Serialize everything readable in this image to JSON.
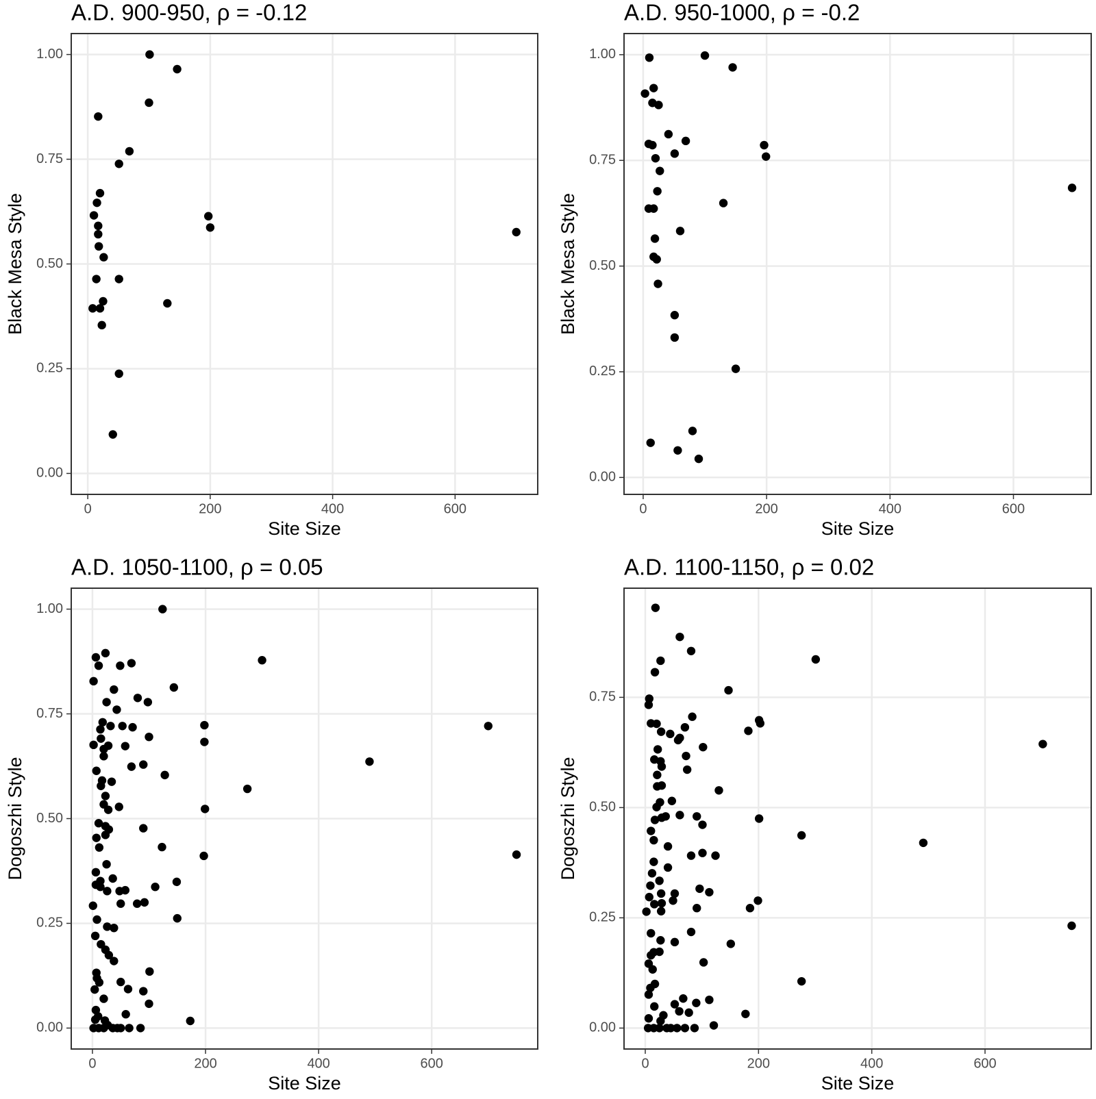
{
  "chart_data": [
    {
      "type": "scatter",
      "title": "A.D. 900-950, ρ = -0.12",
      "x_label": "Site Size",
      "y_label": "Black Mesa Style",
      "color": "#000000",
      "grid": true,
      "xlim": [
        -27,
        735
      ],
      "ylim": [
        -0.05,
        1.05
      ],
      "xticks": [
        0,
        200,
        400,
        600
      ],
      "yticks": [
        {
          "value": 0,
          "label": "0.00"
        },
        0.25,
        {
          "value": 0.5,
          "label": "0.50"
        },
        0.75,
        {
          "value": 1,
          "label": "1.00"
        }
      ],
      "x": [
        101,
        146,
        100,
        17,
        68,
        51,
        20,
        15,
        10,
        197,
        200,
        700,
        17,
        17,
        18,
        26,
        14,
        51,
        130,
        25,
        8,
        20,
        23,
        51,
        41
      ],
      "values": [
        1.0,
        0.965,
        0.885,
        0.852,
        0.769,
        0.739,
        0.669,
        0.646,
        0.616,
        0.614,
        0.587,
        0.576,
        0.591,
        0.571,
        0.542,
        0.516,
        0.464,
        0.464,
        0.406,
        0.411,
        0.394,
        0.394,
        0.354,
        0.238,
        0.093
      ]
    },
    {
      "type": "scatter",
      "title": "A.D. 950-1000, ρ = -0.2",
      "x_label": "Site Size",
      "y_label": "Black Mesa Style",
      "color": "#000000",
      "grid": true,
      "xlim": [
        -31,
        726
      ],
      "ylim": [
        -0.04,
        1.05
      ],
      "xticks": [
        0,
        200,
        400,
        600
      ],
      "yticks": [
        {
          "value": 0,
          "label": "0.00"
        },
        0.25,
        {
          "value": 0.5,
          "label": "0.50"
        },
        0.75,
        {
          "value": 1,
          "label": "1.00"
        }
      ],
      "x": [
        100,
        10,
        145,
        3,
        17,
        15,
        25,
        41,
        69,
        9,
        15,
        196,
        51,
        20,
        199,
        27,
        695,
        23,
        130,
        9,
        17,
        60,
        19,
        17,
        22,
        24,
        51,
        51,
        150,
        80,
        12,
        56,
        90
      ],
      "values": [
        0.998,
        0.993,
        0.97,
        0.908,
        0.921,
        0.886,
        0.881,
        0.812,
        0.796,
        0.789,
        0.786,
        0.786,
        0.766,
        0.755,
        0.759,
        0.725,
        0.685,
        0.677,
        0.649,
        0.636,
        0.636,
        0.583,
        0.565,
        0.522,
        0.516,
        0.458,
        0.384,
        0.331,
        0.257,
        0.11,
        0.082,
        0.064,
        0.044
      ]
    },
    {
      "type": "scatter",
      "title": "A.D. 1050-1100, ρ = 0.05",
      "x_label": "Site Size",
      "y_label": "Dogoszhi Style",
      "color": "#000000",
      "grid": true,
      "xlim": [
        -37.5,
        787.5
      ],
      "ylim": [
        -0.05,
        1.05
      ],
      "xticks": [
        0,
        200,
        400,
        600
      ],
      "yticks": [
        {
          "value": 0,
          "label": "0.00"
        },
        0.25,
        {
          "value": 0.5,
          "label": "0.50"
        },
        0.75,
        {
          "value": 1,
          "label": "1.00"
        }
      ],
      "x": [
        124,
        23,
        6,
        300,
        69,
        49,
        11,
        2,
        144,
        38,
        80,
        98,
        25,
        43,
        18,
        700,
        198,
        53,
        71,
        32,
        14,
        100,
        15,
        198,
        2,
        28,
        58,
        20,
        69,
        90,
        7,
        128,
        20,
        17,
        34,
        15,
        490,
        274,
        23,
        20,
        47,
        199,
        28,
        11,
        23,
        90,
        29,
        23,
        7,
        750,
        197,
        123,
        12,
        25,
        6,
        36,
        14,
        149,
        6,
        111,
        58,
        14,
        26,
        48,
        50,
        92,
        79,
        1,
        150,
        8,
        26,
        38,
        5,
        15,
        23,
        29,
        38,
        7,
        101,
        8,
        12,
        50,
        63,
        90,
        4,
        100,
        20,
        6,
        59,
        173,
        5,
        22,
        2,
        11,
        20,
        27,
        36,
        44,
        50,
        65,
        85,
        10
      ],
      "values": [
        1.0,
        0.895,
        0.885,
        0.878,
        0.871,
        0.865,
        0.865,
        0.828,
        0.813,
        0.808,
        0.788,
        0.778,
        0.778,
        0.76,
        0.73,
        0.721,
        0.723,
        0.721,
        0.718,
        0.721,
        0.713,
        0.695,
        0.691,
        0.683,
        0.676,
        0.674,
        0.673,
        0.666,
        0.624,
        0.629,
        0.614,
        0.604,
        0.649,
        0.591,
        0.588,
        0.578,
        0.636,
        0.571,
        0.554,
        0.534,
        0.528,
        0.523,
        0.521,
        0.489,
        0.482,
        0.477,
        0.474,
        0.461,
        0.454,
        0.414,
        0.411,
        0.432,
        0.431,
        0.391,
        0.372,
        0.357,
        0.351,
        0.349,
        0.342,
        0.337,
        0.329,
        0.337,
        0.327,
        0.327,
        0.297,
        0.3,
        0.297,
        0.292,
        0.262,
        0.259,
        0.242,
        0.239,
        0.22,
        0.2,
        0.187,
        0.174,
        0.16,
        0.132,
        0.135,
        0.119,
        0.109,
        0.11,
        0.093,
        0.088,
        0.092,
        0.058,
        0.07,
        0.043,
        0.033,
        0.017,
        0.02,
        0.018,
        0,
        0,
        0,
        0.007,
        0,
        0,
        0,
        0,
        0,
        0.028
      ]
    },
    {
      "type": "scatter",
      "title": "A.D. 1100-1150, ρ = 0.02",
      "x_label": "Site Size",
      "y_label": "Dogoszhi Style",
      "color": "#000000",
      "grid": true,
      "xlim": [
        -37.5,
        787.5
      ],
      "ylim": [
        -0.0475,
        0.9975
      ],
      "xticks": [
        0,
        200,
        400,
        600
      ],
      "yticks": [
        {
          "value": 0,
          "label": "0.00"
        },
        0.25,
        {
          "value": 0.5,
          "label": "0.50"
        },
        0.75
      ],
      "x": [
        18,
        61,
        81,
        301,
        27,
        17,
        147,
        7,
        6,
        702,
        201,
        203,
        83,
        10,
        20,
        182,
        28,
        44,
        70,
        61,
        58,
        72,
        102,
        22,
        16,
        27,
        29,
        74,
        21,
        29,
        21,
        130,
        47,
        26,
        20,
        61,
        36,
        91,
        201,
        17,
        29,
        101,
        276,
        10,
        15,
        491,
        40,
        101,
        81,
        124,
        15,
        40,
        12,
        25,
        9,
        96,
        113,
        28,
        52,
        7,
        49,
        199,
        29,
        16,
        91,
        185,
        28,
        2,
        81,
        753,
        10,
        27,
        52,
        151,
        25,
        15,
        10,
        6,
        13,
        103,
        17,
        276,
        9,
        6,
        113,
        67,
        90,
        52,
        16,
        60,
        177,
        77,
        6,
        32,
        27,
        121,
        5,
        15,
        25,
        45,
        56,
        70,
        87,
        38
      ],
      "values": [
        0.953,
        0.887,
        0.855,
        0.836,
        0.833,
        0.807,
        0.766,
        0.747,
        0.733,
        0.644,
        0.698,
        0.691,
        0.706,
        0.691,
        0.69,
        0.674,
        0.672,
        0.667,
        0.682,
        0.658,
        0.653,
        0.617,
        0.637,
        0.632,
        0.609,
        0.605,
        0.593,
        0.586,
        0.574,
        0.55,
        0.548,
        0.539,
        0.515,
        0.512,
        0.501,
        0.483,
        0.48,
        0.48,
        0.475,
        0.472,
        0.477,
        0.461,
        0.437,
        0.447,
        0.426,
        0.42,
        0.412,
        0.397,
        0.391,
        0.391,
        0.377,
        0.364,
        0.351,
        0.334,
        0.323,
        0.316,
        0.308,
        0.305,
        0.305,
        0.297,
        0.289,
        0.289,
        0.283,
        0.281,
        0.272,
        0.272,
        0.265,
        0.264,
        0.218,
        0.232,
        0.215,
        0.199,
        0.195,
        0.191,
        0.173,
        0.172,
        0.165,
        0.146,
        0.133,
        0.149,
        0.1,
        0.106,
        0.091,
        0.076,
        0.064,
        0.067,
        0.057,
        0.054,
        0.049,
        0.038,
        0.032,
        0.035,
        0.022,
        0.029,
        0.016,
        0.006,
        0,
        0,
        0,
        0,
        0,
        0,
        0,
        0
      ]
    }
  ]
}
